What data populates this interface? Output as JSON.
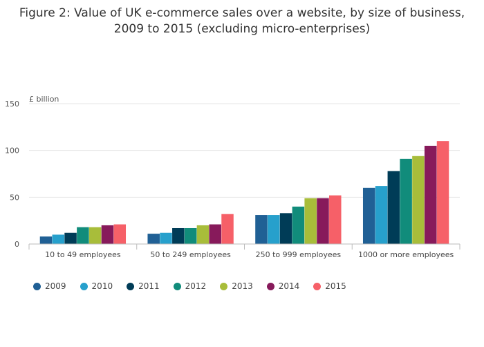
{
  "chart_data": {
    "type": "bar",
    "title_line1": "Figure 2: Value of UK e-commerce sales over a website, by size of business,",
    "title_line2": "2009 to 2015 (excluding micro-enterprises)",
    "unit_label": "£ billion",
    "categories": [
      "10 to 49 employees",
      "50 to 249 employees",
      "250 to 999 employees",
      "1000 or more employees"
    ],
    "series": [
      {
        "name": "2009",
        "color": "#206095",
        "values": [
          8,
          11,
          31,
          60
        ]
      },
      {
        "name": "2010",
        "color": "#27a0cc",
        "values": [
          10,
          12,
          31,
          62
        ]
      },
      {
        "name": "2011",
        "color": "#003c57",
        "values": [
          12,
          17,
          33,
          78
        ]
      },
      {
        "name": "2012",
        "color": "#118c7b",
        "values": [
          18,
          17,
          40,
          91
        ]
      },
      {
        "name": "2013",
        "color": "#a8bd3a",
        "values": [
          18,
          20,
          49,
          94
        ]
      },
      {
        "name": "2014",
        "color": "#871a5b",
        "values": [
          20,
          21,
          49,
          105
        ]
      },
      {
        "name": "2015",
        "color": "#f66068",
        "values": [
          21,
          32,
          52,
          110
        ]
      }
    ],
    "ylim": [
      0,
      150
    ],
    "yticks": [
      0,
      50,
      100,
      150
    ],
    "grid": true,
    "legend": "bottom-left"
  }
}
